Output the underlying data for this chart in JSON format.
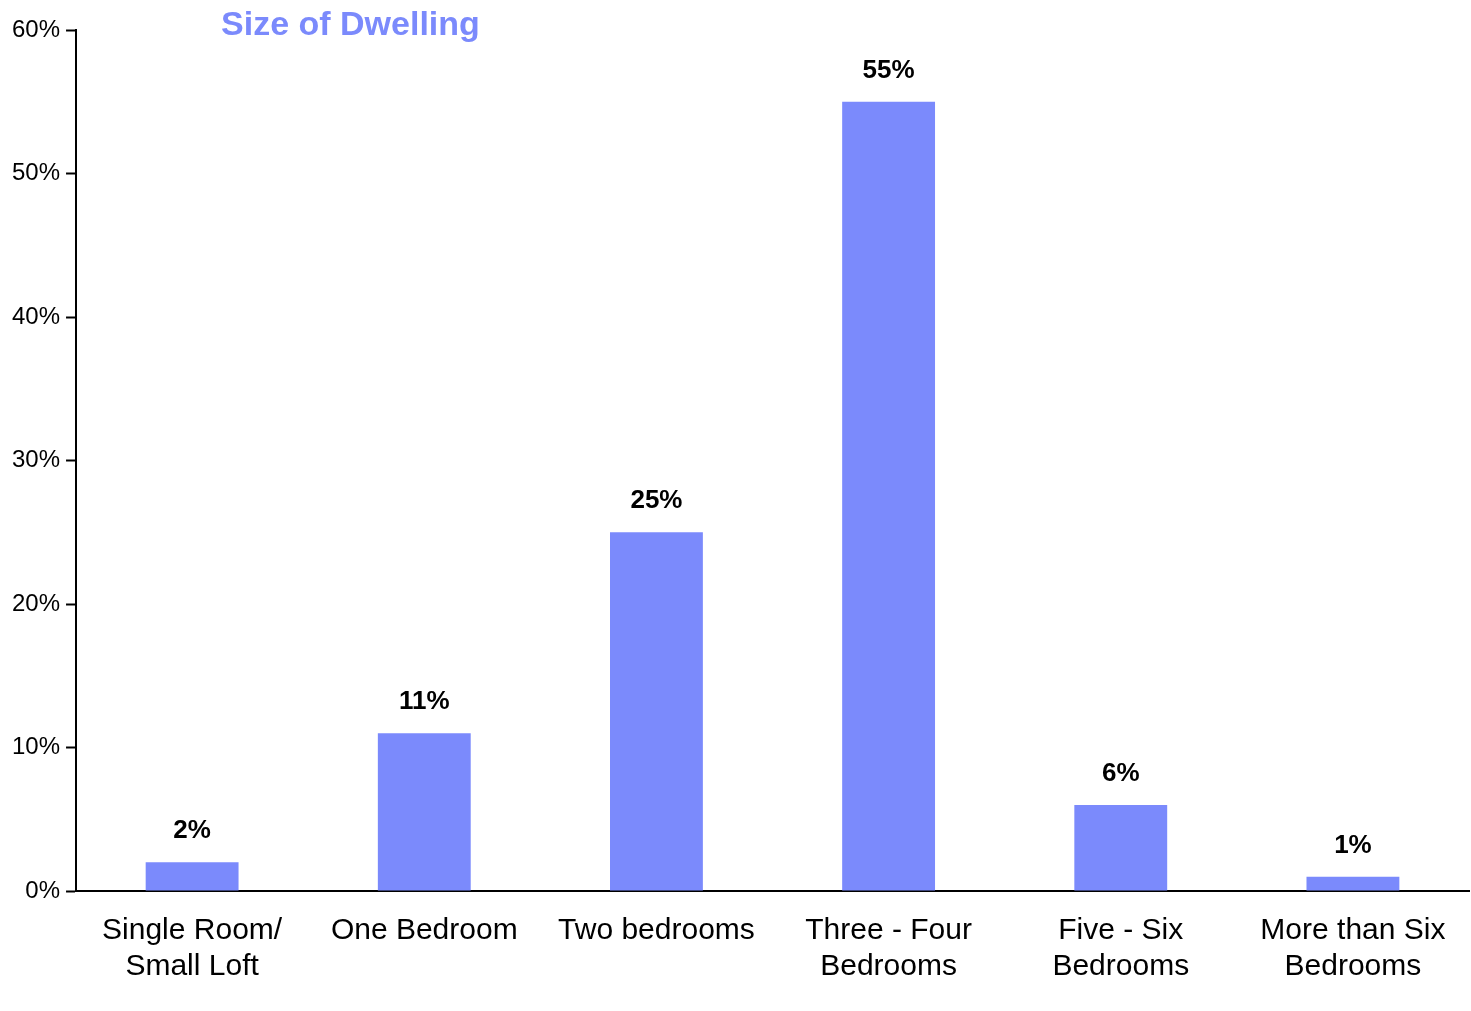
{
  "chart_data": {
    "type": "bar",
    "title": "Size of Dwelling",
    "categories": [
      "Single Room/ Small Loft",
      "One Bedroom",
      "Two bedrooms",
      "Three - Four Bedrooms",
      "Five - Six Bedrooms",
      "More than Six Bedrooms"
    ],
    "values": [
      2,
      11,
      25,
      55,
      6,
      1
    ],
    "value_labels": [
      "2%",
      "11%",
      "25%",
      "55%",
      "6%",
      "1%"
    ],
    "color": "#7b8afc",
    "ylim": [
      0,
      60
    ],
    "yticks": [
      {
        "value": 0,
        "label": "0%"
      },
      {
        "value": 10,
        "label": "10%"
      },
      {
        "value": 20,
        "label": "20%"
      },
      {
        "value": 30,
        "label": "30%"
      },
      {
        "value": 40,
        "label": "40%"
      },
      {
        "value": 50,
        "label": "50%"
      },
      {
        "value": 60,
        "label": "60%"
      }
    ],
    "grid": false,
    "legend": false
  }
}
